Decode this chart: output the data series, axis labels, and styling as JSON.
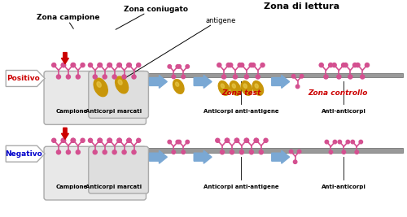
{
  "bg_color": "#f0ede8",
  "top_labels": {
    "zona_campione": "Zona campione",
    "zona_coniugato": "Zona coniugato",
    "antigene": "antigene",
    "zona_lettura": "Zona di lettura"
  },
  "bottom_labels": {
    "zona_test": "Zona test",
    "zona_controllo": "Zona controllo"
  },
  "row_labels": {
    "positivo": "Positivo",
    "negativo": "Negativo"
  },
  "bottom_row_labels": [
    "Campione",
    "Anticorpi marcati",
    "Anticorpi anti-antigene",
    "Anti-anticorpi"
  ],
  "colors": {
    "red": "#cc0000",
    "blue_label": "#0000cc",
    "arrow_blue": "#7aa8d4",
    "orange": "#c8960a",
    "pink": "#d45090",
    "gray_membrane": "#999999",
    "light_gray": "#dddddd",
    "box_gray": "#e0e0e0",
    "white": "#ffffff",
    "black": "#000000",
    "box_border": "#aaaaaa",
    "dark_outline": "#555555"
  }
}
